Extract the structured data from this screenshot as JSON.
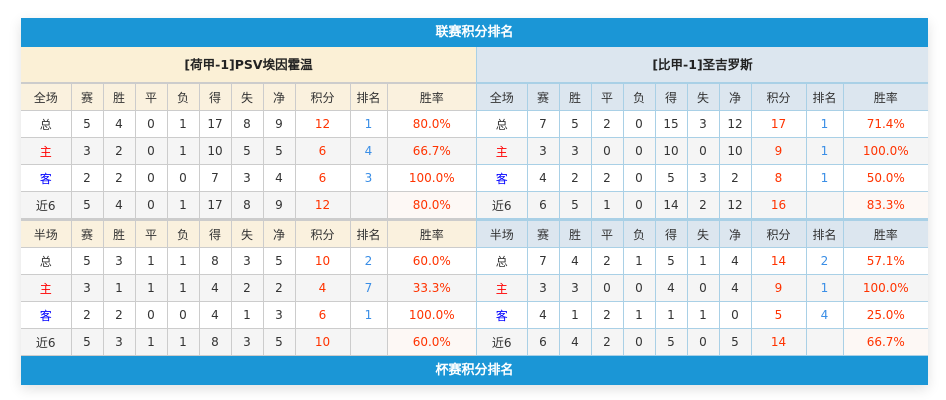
{
  "league_banner": "联赛积分排名",
  "cup_banner": "杯赛积分排名",
  "colors": {
    "banner": "#1b96d6",
    "points": "#ff3300",
    "rank": "#3a8ee6",
    "home": "#ff0000",
    "away": "#0000ff"
  },
  "columns": [
    "赛",
    "胜",
    "平",
    "负",
    "得",
    "失",
    "净",
    "积分",
    "排名",
    "胜率"
  ],
  "teams": [
    {
      "name": "[荷甲-1]PSV埃因霍温",
      "full": {
        "label": "全场",
        "rows": [
          [
            "总",
            "5",
            "4",
            "0",
            "1",
            "17",
            "8",
            "9",
            "12",
            "1",
            "80.0%"
          ],
          [
            "主",
            "3",
            "2",
            "0",
            "1",
            "10",
            "5",
            "5",
            "6",
            "4",
            "66.7%"
          ],
          [
            "客",
            "2",
            "2",
            "0",
            "0",
            "7",
            "3",
            "4",
            "6",
            "3",
            "100.0%"
          ],
          [
            "近6",
            "5",
            "4",
            "0",
            "1",
            "17",
            "8",
            "9",
            "12",
            "",
            "80.0%"
          ]
        ]
      },
      "half": {
        "label": "半场",
        "rows": [
          [
            "总",
            "5",
            "3",
            "1",
            "1",
            "8",
            "3",
            "5",
            "10",
            "2",
            "60.0%"
          ],
          [
            "主",
            "3",
            "1",
            "1",
            "1",
            "4",
            "2",
            "2",
            "4",
            "7",
            "33.3%"
          ],
          [
            "客",
            "2",
            "2",
            "0",
            "0",
            "4",
            "1",
            "3",
            "6",
            "1",
            "100.0%"
          ],
          [
            "近6",
            "5",
            "3",
            "1",
            "1",
            "8",
            "3",
            "5",
            "10",
            "",
            "60.0%"
          ]
        ]
      }
    },
    {
      "name": "[比甲-1]圣吉罗斯",
      "full": {
        "label": "全场",
        "rows": [
          [
            "总",
            "7",
            "5",
            "2",
            "0",
            "15",
            "3",
            "12",
            "17",
            "1",
            "71.4%"
          ],
          [
            "主",
            "3",
            "3",
            "0",
            "0",
            "10",
            "0",
            "10",
            "9",
            "1",
            "100.0%"
          ],
          [
            "客",
            "4",
            "2",
            "2",
            "0",
            "5",
            "3",
            "2",
            "8",
            "1",
            "50.0%"
          ],
          [
            "近6",
            "6",
            "5",
            "1",
            "0",
            "14",
            "2",
            "12",
            "16",
            "",
            "83.3%"
          ]
        ]
      },
      "half": {
        "label": "半场",
        "rows": [
          [
            "总",
            "7",
            "4",
            "2",
            "1",
            "5",
            "1",
            "4",
            "14",
            "2",
            "57.1%"
          ],
          [
            "主",
            "3",
            "3",
            "0",
            "0",
            "4",
            "0",
            "4",
            "9",
            "1",
            "100.0%"
          ],
          [
            "客",
            "4",
            "1",
            "2",
            "1",
            "1",
            "1",
            "0",
            "5",
            "4",
            "25.0%"
          ],
          [
            "近6",
            "6",
            "4",
            "2",
            "0",
            "5",
            "0",
            "5",
            "14",
            "",
            "66.7%"
          ]
        ]
      }
    }
  ]
}
